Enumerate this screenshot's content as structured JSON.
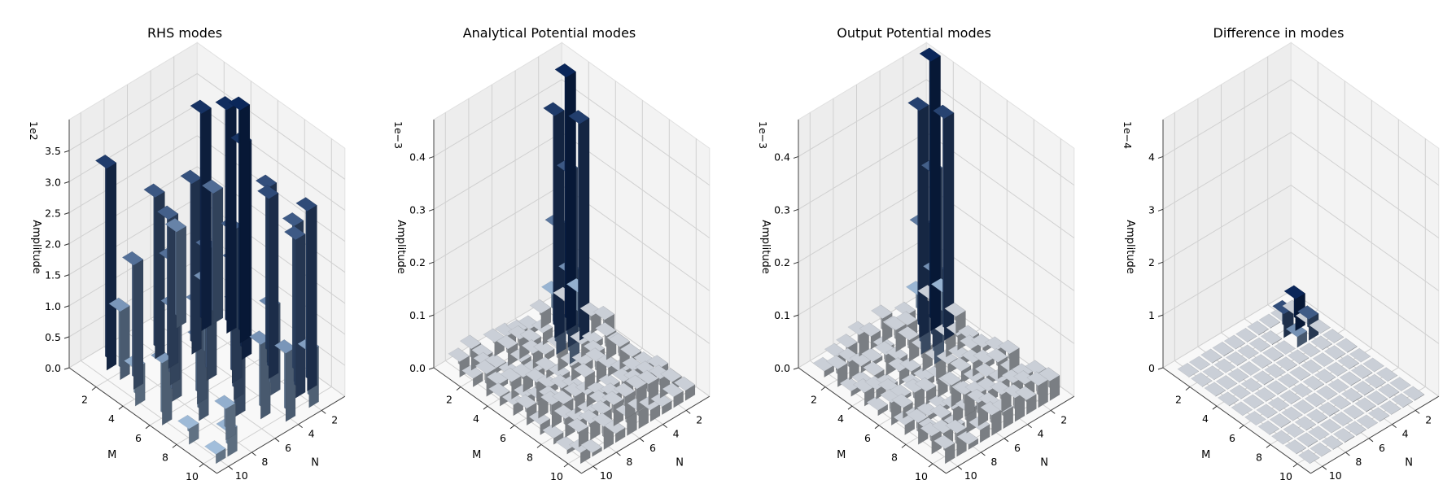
{
  "chart_data": [
    {
      "type": "bar3d",
      "title": "RHS modes",
      "xlabel": "M",
      "ylabel": "N",
      "zlabel": "Amplitude",
      "offset_text": "1e2",
      "xticks": [
        "2",
        "4",
        "6",
        "8",
        "10"
      ],
      "yticks": [
        "2",
        "4",
        "6",
        "8",
        "10"
      ],
      "zticks": [
        "0.0",
        "0.5",
        "1.0",
        "1.5",
        "2.0",
        "2.5",
        "3.0",
        "3.5"
      ],
      "zlim": [
        0,
        4.0
      ],
      "grid": true,
      "colormap": "Blues",
      "bars": [
        {
          "m": 1,
          "n": 9,
          "h": 3.25
        },
        {
          "m": 2,
          "n": 6,
          "h": 2.6
        },
        {
          "m": 1,
          "n": 3,
          "h": 1.55
        },
        {
          "m": 2,
          "n": 2,
          "h": 3.5
        },
        {
          "m": 3,
          "n": 4,
          "h": 2.75
        },
        {
          "m": 3,
          "n": 1,
          "h": 3.6
        },
        {
          "m": 2,
          "n": 1,
          "h": 2.1
        },
        {
          "m": 4,
          "n": 1,
          "h": 3.75
        },
        {
          "m": 5,
          "n": 2,
          "h": 3.45
        },
        {
          "m": 6,
          "n": 1,
          "h": 2.8
        },
        {
          "m": 7,
          "n": 2,
          "h": 2.9
        },
        {
          "m": 8,
          "n": 1,
          "h": 2.5
        },
        {
          "m": 9,
          "n": 1,
          "h": 2.9
        },
        {
          "m": 9,
          "n": 2,
          "h": 2.55
        },
        {
          "m": 3,
          "n": 6,
          "h": 2.4
        },
        {
          "m": 4,
          "n": 7,
          "h": 2.0
        },
        {
          "m": 5,
          "n": 5,
          "h": 2.1
        },
        {
          "m": 6,
          "n": 4,
          "h": 2.45
        },
        {
          "m": 7,
          "n": 5,
          "h": 2.2
        },
        {
          "m": 5,
          "n": 8,
          "h": 1.5
        },
        {
          "m": 3,
          "n": 9,
          "h": 2.0
        },
        {
          "m": 6,
          "n": 7,
          "h": 1.6
        },
        {
          "m": 7,
          "n": 8,
          "h": 1.3
        },
        {
          "m": 8,
          "n": 6,
          "h": 1.8
        },
        {
          "m": 9,
          "n": 5,
          "h": 1.2
        },
        {
          "m": 10,
          "n": 4,
          "h": 1.1
        },
        {
          "m": 10,
          "n": 9,
          "h": 0.4
        },
        {
          "m": 10,
          "n": 10,
          "h": 0.15
        },
        {
          "m": 8,
          "n": 10,
          "h": 0.25
        },
        {
          "m": 9,
          "n": 8,
          "h": 0.5
        },
        {
          "m": 4,
          "n": 10,
          "h": 0.6
        },
        {
          "m": 6,
          "n": 10,
          "h": 1.0
        },
        {
          "m": 2,
          "n": 9,
          "h": 1.1
        },
        {
          "m": 4,
          "n": 4,
          "h": 1.3
        },
        {
          "m": 8,
          "n": 3,
          "h": 1.4
        },
        {
          "m": 10,
          "n": 2,
          "h": 0.9
        }
      ]
    },
    {
      "type": "bar3d",
      "title": "Analytical Potential modes",
      "xlabel": "M",
      "ylabel": "N",
      "zlabel": "Amplitude",
      "offset_text": "1e−3",
      "xticks": [
        "2",
        "4",
        "6",
        "8",
        "10"
      ],
      "yticks": [
        "2",
        "4",
        "6",
        "8",
        "10"
      ],
      "zticks": [
        "0.0",
        "0.1",
        "0.2",
        "0.3",
        "0.4"
      ],
      "zlim": [
        0,
        0.47
      ],
      "grid": true,
      "colormap": "Blues",
      "bars": [
        {
          "m": 2,
          "n": 2,
          "h": 0.48
        },
        {
          "m": 2,
          "n": 3,
          "h": 0.42
        },
        {
          "m": 3,
          "n": 2,
          "h": 0.41
        },
        {
          "m": 3,
          "n": 3,
          "h": 0.33
        },
        {
          "m": 3,
          "n": 4,
          "h": 0.24
        },
        {
          "m": 4,
          "n": 4,
          "h": 0.17
        },
        {
          "m": 2,
          "n": 1,
          "h": 0.06
        },
        {
          "m": 1,
          "n": 2,
          "h": 0.05
        }
      ],
      "noise_max": 0.045
    },
    {
      "type": "bar3d",
      "title": "Output Potential modes",
      "xlabel": "M",
      "ylabel": "N",
      "zlabel": "Amplitude",
      "offset_text": "1e−3",
      "xticks": [
        "2",
        "4",
        "6",
        "8",
        "10"
      ],
      "yticks": [
        "2",
        "4",
        "6",
        "8",
        "10"
      ],
      "zticks": [
        "0.0",
        "0.1",
        "0.2",
        "0.3",
        "0.4"
      ],
      "zlim": [
        0,
        0.47
      ],
      "grid": true,
      "colormap": "Blues",
      "bars": [
        {
          "m": 2,
          "n": 2,
          "h": 0.51
        },
        {
          "m": 2,
          "n": 3,
          "h": 0.43
        },
        {
          "m": 3,
          "n": 2,
          "h": 0.42
        },
        {
          "m": 3,
          "n": 3,
          "h": 0.33
        },
        {
          "m": 3,
          "n": 4,
          "h": 0.24
        },
        {
          "m": 4,
          "n": 4,
          "h": 0.17
        },
        {
          "m": 2,
          "n": 1,
          "h": 0.06
        },
        {
          "m": 1,
          "n": 2,
          "h": 0.05
        }
      ],
      "noise_max": 0.045
    },
    {
      "type": "bar3d",
      "title": "Difference in modes",
      "xlabel": "M",
      "ylabel": "N",
      "zlabel": "Amplitude",
      "offset_text": "1e−4",
      "xticks": [
        "2",
        "4",
        "6",
        "8",
        "10"
      ],
      "yticks": [
        "2",
        "4",
        "6",
        "8",
        "10"
      ],
      "zticks": [
        "0",
        "1",
        "2",
        "3",
        "4"
      ],
      "zlim": [
        0,
        4.7
      ],
      "grid": true,
      "colormap": "Blues",
      "bars": [
        {
          "m": 2,
          "n": 2,
          "h": 0.6
        },
        {
          "m": 2,
          "n": 3,
          "h": 0.45
        },
        {
          "m": 3,
          "n": 2,
          "h": 0.4
        },
        {
          "m": 3,
          "n": 3,
          "h": 0.2
        }
      ],
      "noise_max": 0.01
    }
  ]
}
